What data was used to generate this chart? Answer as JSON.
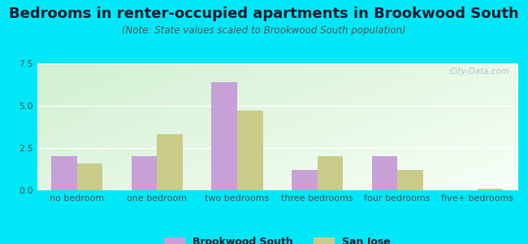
{
  "title": "Bedrooms in renter-occupied apartments in Brookwood South",
  "subtitle": "(Note: State values scaled to Brookwood South population)",
  "categories": [
    "no bedroom",
    "one bedroom",
    "two bedrooms",
    "three bedrooms",
    "four bedrooms",
    "five+ bedrooms"
  ],
  "brookwood_values": [
    2.0,
    2.0,
    6.4,
    1.2,
    2.0,
    0.0
  ],
  "sanjose_values": [
    1.6,
    3.3,
    4.7,
    2.0,
    1.2,
    0.1
  ],
  "brookwood_color": "#c8a0d8",
  "sanjose_color": "#c8cc88",
  "ylim": [
    0,
    7.5
  ],
  "yticks": [
    0,
    2.5,
    5,
    7.5
  ],
  "background_outer": "#00e8f8",
  "title_fontsize": 13,
  "subtitle_fontsize": 8.5,
  "tick_fontsize": 8,
  "legend_fontsize": 9,
  "watermark": "City-Data.com"
}
